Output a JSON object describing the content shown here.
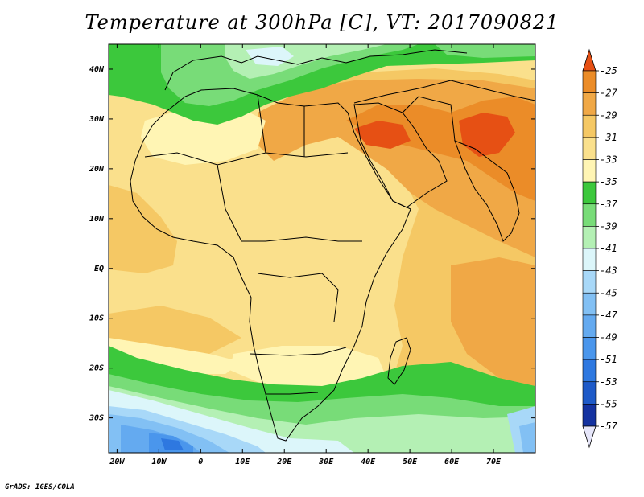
{
  "title": "Temperature at 300hPa [C], VT: 2017090821",
  "credit": "GrADS: IGES/COLA",
  "colors": {
    "band_lt_57": "#0a0a6e",
    "band_-57_-55": "#1432a0",
    "band_-55_-53": "#1e5ac8",
    "band_-53_-51": "#2e78e0",
    "band_-51_-49": "#4a96ec",
    "band_-49_-47": "#64aaf0",
    "band_-47_-45": "#82c0f4",
    "band_-45_-43": "#a8d8f8",
    "band_-43_-41": "#dcf6fa",
    "band_-41_-39": "#b4f0b4",
    "band_-39_-37": "#78dc78",
    "band_-37_-35": "#3cc83c",
    "band_-35_-33": "#fff5b4",
    "band_-33_-31": "#fae08c",
    "band_-31_-29": "#f5c864",
    "band_-29_-27": "#f0a846",
    "band_-27_-25": "#eb8c28",
    "band_gt_-25": "#e65014",
    "coast": "#000000"
  },
  "chart_data": {
    "type": "heatmap",
    "variable": "Temperature at 300hPa",
    "units": "C",
    "valid_time": "2017090821",
    "lon_range": [
      -22,
      80
    ],
    "lat_range": [
      -37,
      45
    ],
    "x_ticks": [
      "20W",
      "10W",
      "0",
      "10E",
      "20E",
      "30E",
      "40E",
      "50E",
      "60E",
      "70E"
    ],
    "x_tick_values": [
      -20,
      -10,
      0,
      10,
      20,
      30,
      40,
      50,
      60,
      70
    ],
    "y_ticks": [
      "40N",
      "30N",
      "20N",
      "10N",
      "EQ",
      "10S",
      "20S",
      "30S"
    ],
    "y_tick_values": [
      40,
      30,
      20,
      10,
      0,
      -10,
      -20,
      -30
    ],
    "colorbar": {
      "levels": [
        -25,
        -27,
        -29,
        -31,
        -33,
        -35,
        -37,
        -39,
        -41,
        -43,
        -45,
        -47,
        -49,
        -51,
        -53,
        -55,
        -57
      ],
      "labels": [
        "-25",
        "-27",
        "-29",
        "-31",
        "-33",
        "-35",
        "-37",
        "-39",
        "-41",
        "-43",
        "-45",
        "-47",
        "-49",
        "-51",
        "-53",
        "-55",
        "-57"
      ],
      "colors": [
        "#e65014",
        "#eb8c28",
        "#f0a846",
        "#f5c864",
        "#fae08c",
        "#fff5b4",
        "#3cc83c",
        "#78dc78",
        "#b4f0b4",
        "#dcf6fa",
        "#a8d8f8",
        "#82c0f4",
        "#64aaf0",
        "#4a96ec",
        "#2e78e0",
        "#1e5ac8",
        "#1432a0",
        "#0a0a6e"
      ]
    }
  }
}
